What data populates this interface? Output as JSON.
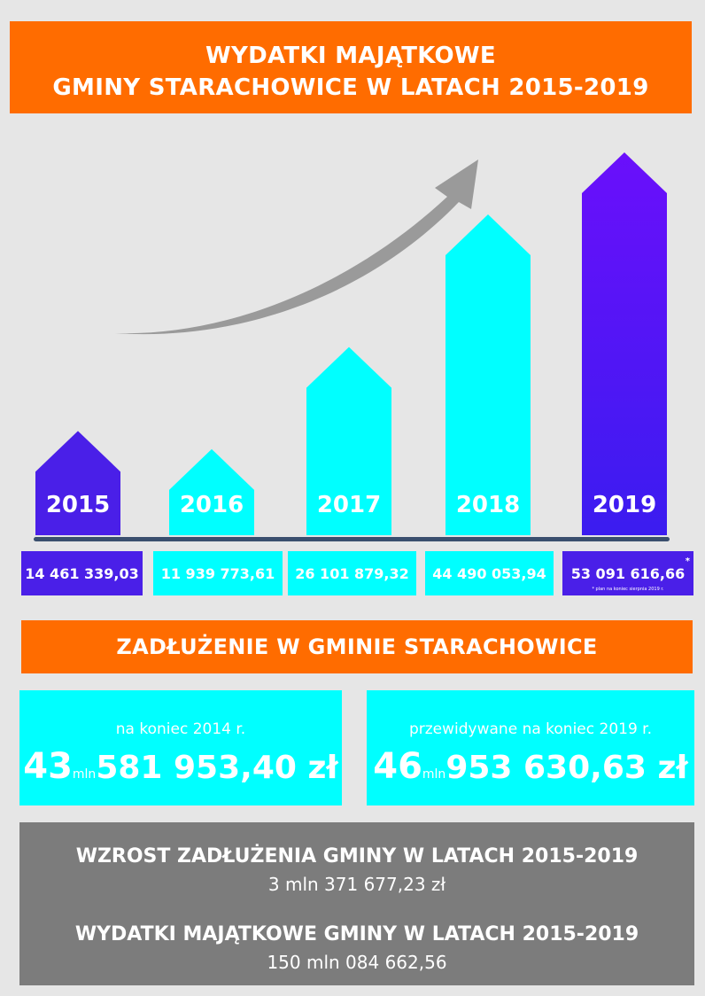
{
  "header": {
    "line1": "WYDATKI MAJĄTKOWE",
    "line2": "GMINY STARACHOWICE W LATACH 2015-2019"
  },
  "chart_data": {
    "type": "bar",
    "categories": [
      "2015",
      "2016",
      "2017",
      "2018",
      "2019"
    ],
    "values": [
      14461339.03,
      11939773.61,
      26101879.32,
      44490053.94,
      53091616.66
    ],
    "value_labels": [
      "14 461 339,03",
      "11 939 773,61",
      "26 101 879,32",
      "44 490 053,94",
      "53 091 616,66"
    ],
    "colors": [
      "#4a1fe8",
      "#00ffff",
      "#00ffff",
      "#00ffff",
      "#4a1fe8"
    ],
    "highlight_gradient": [
      "#6a0ffb",
      "#3b1cf0"
    ],
    "trend_arrow": true,
    "footnote_marker": "*",
    "footnote": "* plan na koniec sierpnia 2019 r."
  },
  "debt": {
    "title": "ZADŁUŻENIE W GMINIE STARACHOWICE",
    "left": {
      "caption": "na koniec 2014 r.",
      "millions": "43",
      "mln_unit": "mln",
      "rest": "581 953,40 zł"
    },
    "right": {
      "caption": "przewidywane na koniec 2019 r.",
      "millions": "46",
      "mln_unit": "mln",
      "rest": "953 630,63 zł"
    }
  },
  "summary": {
    "growth_title": "WZROST ZADŁUŻENIA GMINY W LATACH 2015-2019",
    "growth_value": "3 mln 371 677,23 zł",
    "spending_title": "WYDATKI MAJĄTKOWE GMINY W LATACH 2015-2019",
    "spending_value": "150 mln 084 662,56"
  },
  "colors": {
    "orange": "#ff6c00",
    "cyan": "#00ffff",
    "purple": "#4a1fe8",
    "grey": "#7c7c7c",
    "background": "#e6e6e6"
  }
}
